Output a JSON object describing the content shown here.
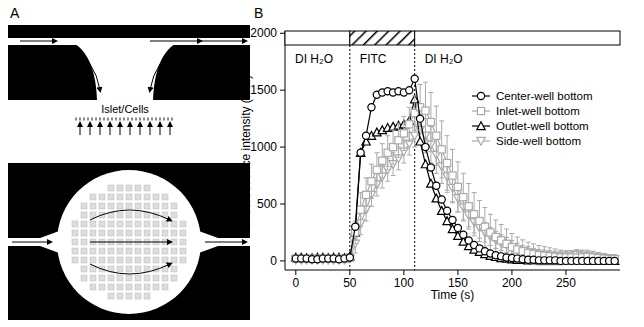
{
  "figure": {
    "panel_labels": [
      "A",
      "B"
    ]
  },
  "diagram": {
    "label": "Islet/Cells"
  },
  "chart_data": {
    "type": "line",
    "x_label": "Time (s)",
    "y_label": "Fluorescence intensity (a.u.)",
    "xlim": [
      -10,
      300
    ],
    "ylim": [
      -80,
      2020
    ],
    "xticks": [
      0,
      50,
      100,
      150,
      200,
      250
    ],
    "yticks": [
      0,
      500,
      1000,
      1500,
      2000
    ],
    "legend": "top-right",
    "phases": [
      {
        "label": "DI H₂O",
        "start": -10,
        "end": 50,
        "hatched": false
      },
      {
        "label": "FITC",
        "start": 50,
        "end": 110,
        "hatched": true
      },
      {
        "label": "DI H₂O",
        "start": 110,
        "end": 300,
        "hatched": false
      }
    ],
    "x": [
      0,
      5,
      10,
      15,
      20,
      25,
      30,
      35,
      40,
      45,
      50,
      55,
      60,
      65,
      70,
      75,
      80,
      85,
      90,
      95,
      100,
      105,
      110,
      115,
      120,
      125,
      130,
      135,
      140,
      145,
      150,
      155,
      160,
      165,
      170,
      175,
      180,
      185,
      190,
      195,
      200,
      205,
      210,
      215,
      220,
      225,
      230,
      235,
      240,
      245,
      250,
      255,
      260,
      265,
      270,
      275,
      280,
      285,
      290,
      295
    ],
    "series": [
      {
        "name": "Center-well bottom",
        "color": "#000000",
        "marker": "circle",
        "values": [
          20,
          20,
          20,
          15,
          15,
          20,
          20,
          20,
          15,
          20,
          30,
          300,
          950,
          1100,
          1350,
          1460,
          1480,
          1490,
          1480,
          1490,
          1480,
          1500,
          1600,
          1250,
          1000,
          820,
          660,
          540,
          440,
          360,
          290,
          230,
          180,
          140,
          110,
          85,
          65,
          50,
          40,
          30,
          25,
          20,
          15,
          10,
          10,
          5,
          5,
          5,
          5,
          0,
          0,
          0,
          0,
          0,
          0,
          0,
          0,
          0,
          0,
          0
        ]
      },
      {
        "name": "Inlet-well bottom",
        "color": "#aaaaaa",
        "marker": "square",
        "values": [
          20,
          20,
          20,
          20,
          20,
          20,
          20,
          20,
          20,
          20,
          30,
          250,
          450,
          580,
          700,
          800,
          880,
          950,
          1000,
          1060,
          1120,
          1200,
          1300,
          1350,
          1320,
          1220,
          1100,
          980,
          860,
          750,
          650,
          560,
          480,
          410,
          350,
          300,
          250,
          210,
          180,
          150,
          120,
          100,
          85,
          70,
          60,
          50,
          45,
          40,
          35,
          30,
          30,
          30,
          30,
          30,
          35,
          30,
          25,
          20,
          15,
          15
        ],
        "errors": [
          15,
          15,
          15,
          15,
          15,
          15,
          15,
          15,
          15,
          15,
          20,
          100,
          150,
          150,
          150,
          150,
          150,
          150,
          150,
          150,
          150,
          150,
          150,
          200,
          250,
          260,
          260,
          250,
          240,
          230,
          220,
          210,
          200,
          190,
          180,
          170,
          160,
          150,
          140,
          130,
          120,
          110,
          100,
          95,
          90,
          85,
          80,
          75,
          70,
          65,
          60,
          60,
          60,
          60,
          60,
          55,
          50,
          45,
          40,
          40
        ]
      },
      {
        "name": "Outlet-well bottom",
        "color": "#000000",
        "marker": "triangle",
        "values": [
          30,
          30,
          25,
          25,
          30,
          30,
          25,
          30,
          30,
          25,
          40,
          250,
          950,
          1050,
          1100,
          1130,
          1150,
          1170,
          1180,
          1190,
          1200,
          1230,
          1420,
          1050,
          850,
          680,
          550,
          440,
          350,
          280,
          220,
          170,
          130,
          100,
          80,
          60,
          45,
          35,
          25,
          20,
          15,
          10,
          10,
          5,
          5,
          5,
          0,
          0,
          0,
          0,
          0,
          0,
          0,
          0,
          0,
          0,
          0,
          0,
          0,
          0
        ]
      },
      {
        "name": "Side-well bottom",
        "color": "#aaaaaa",
        "marker": "triangle-down",
        "values": [
          10,
          10,
          10,
          10,
          10,
          10,
          10,
          10,
          10,
          10,
          20,
          150,
          330,
          450,
          580,
          670,
          740,
          800,
          850,
          900,
          960,
          1030,
          1100,
          1150,
          1100,
          1020,
          930,
          830,
          740,
          640,
          550,
          470,
          400,
          340,
          290,
          250,
          215,
          185,
          160,
          140,
          120,
          100,
          85,
          75,
          65,
          55,
          50,
          45,
          40,
          40,
          40,
          45,
          50,
          45,
          40,
          35,
          30,
          25,
          20,
          15
        ],
        "errors": [
          10,
          10,
          10,
          10,
          10,
          10,
          10,
          10,
          10,
          10,
          20,
          80,
          100,
          100,
          100,
          100,
          100,
          100,
          100,
          100,
          100,
          100,
          100,
          120,
          150,
          160,
          160,
          150,
          140,
          130,
          120,
          110,
          100,
          95,
          90,
          85,
          80,
          75,
          70,
          65,
          60,
          55,
          50,
          50,
          45,
          45,
          45,
          45,
          45,
          45,
          45,
          45,
          50,
          50,
          45,
          45,
          40,
          40,
          35,
          35
        ]
      }
    ]
  }
}
